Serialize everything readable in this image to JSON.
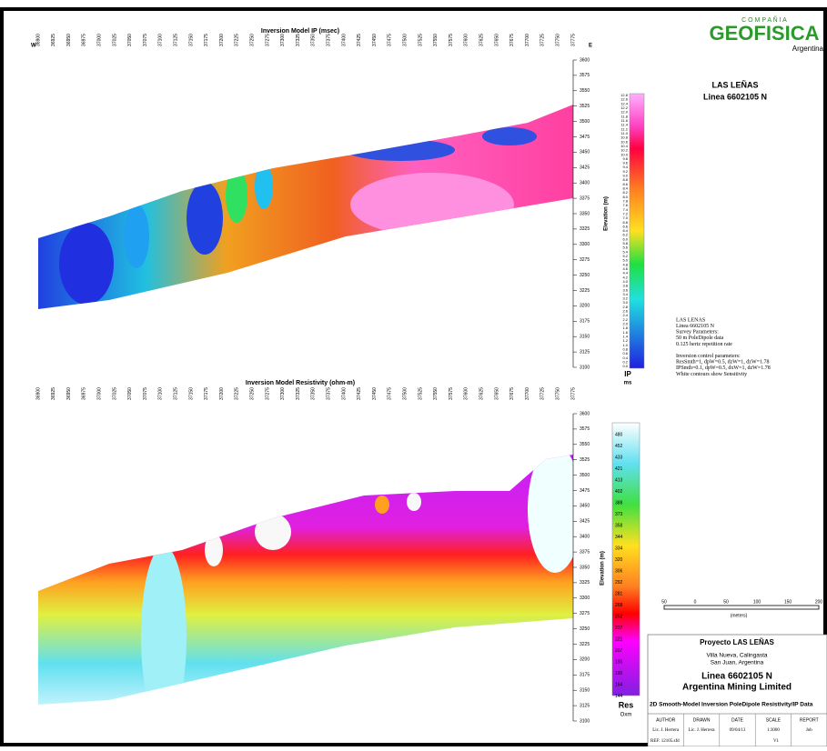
{
  "logo": {
    "top": "C O M P A Ñ I A",
    "brand": "GEOFISICA",
    "country": "Argentina"
  },
  "site": {
    "name": "LAS LEÑAS",
    "line": "Linea 6602105 N"
  },
  "stations": [
    36900,
    36925,
    36950,
    36975,
    37000,
    37025,
    37050,
    37075,
    37100,
    37125,
    37150,
    37175,
    37200,
    37225,
    37250,
    37275,
    37300,
    37325,
    37350,
    37375,
    37400,
    37425,
    37450,
    37475,
    37500,
    37525,
    37550,
    37575,
    37600,
    37625,
    37650,
    37675,
    37700,
    37725,
    37750,
    37775
  ],
  "elevations": [
    3600,
    3575,
    3550,
    3525,
    3500,
    3475,
    3450,
    3425,
    3400,
    3375,
    3350,
    3325,
    3300,
    3275,
    3250,
    3225,
    3200,
    3175,
    3150,
    3125,
    3100
  ],
  "ip_panel": {
    "title": "Inversion Model IP (msec)",
    "west": "W",
    "east": "E",
    "axis_label": "Elevation (m)",
    "scale_labels": [
      "12.8",
      "12.6",
      "12.4",
      "12.2",
      "12.0",
      "11.8",
      "11.6",
      "11.4",
      "11.2",
      "11.0",
      "10.8",
      "10.6",
      "10.4",
      "10.2",
      "10.0",
      "9.8",
      "9.6",
      "9.4",
      "9.2",
      "9.0",
      "8.8",
      "8.6",
      "8.4",
      "8.2",
      "8.0",
      "7.8",
      "7.6",
      "7.4",
      "7.2",
      "7.0",
      "6.8",
      "6.6",
      "6.4",
      "6.2",
      "6.0",
      "5.8",
      "5.6",
      "5.4",
      "5.2",
      "5.0",
      "4.8",
      "4.6",
      "4.4",
      "4.2",
      "4.0",
      "3.8",
      "3.6",
      "3.4",
      "3.2",
      "3.0",
      "2.8",
      "2.6",
      "2.4",
      "2.2",
      "2.0",
      "1.8",
      "1.6",
      "1.4",
      "1.2",
      "1.0",
      "0.8",
      "0.6",
      "0.4",
      "0.2",
      "0.0"
    ],
    "scale_title": "IP",
    "scale_unit": "ms"
  },
  "res_panel": {
    "title": "Inversion Model Resistivity (ohm-m)",
    "axis_label": "Elevation (m)",
    "scale_labels": [
      "480",
      "452",
      "433",
      "421",
      "413",
      "402",
      "388",
      "373",
      "358",
      "344",
      "334",
      "320",
      "306",
      "292",
      "281",
      "268",
      "252",
      "237",
      "221",
      "207",
      "193",
      "180",
      "164",
      "144"
    ],
    "scale_title": "Res",
    "scale_unit": "Oxm"
  },
  "notes": [
    "LAS LENAS",
    "Linea 6602105 N",
    "Survey Parameters:",
    "50 m PoleDipole data",
    "0.125 hertz repetition rate",
    "",
    "Inversion control parameters:",
    "ResSmth=1, dpW=0.5, dzW=1, dzW=1.78",
    "IPSmth=0.1, dpW=0.5, dxW=1, dzW=1.78",
    "White contours show Sensitivity"
  ],
  "scale_bar": {
    "ticks": [
      "50",
      "0",
      "50",
      "100",
      "150",
      "200"
    ],
    "unit": "(meters)"
  },
  "title_block": {
    "project": "Proyecto LAS LEÑAS",
    "place1": "Villa Nueva, Calingasta",
    "place2": "San Juan, Argentina",
    "line": "Linea 6602105 N",
    "company": "Argentina Mining Limited",
    "subtitle": "2D Smooth-Model Inversion  PoleDipole Resistivity/IP Data",
    "headers": [
      "AUTHOR",
      "DRAWN",
      "DATE",
      "SCALE",
      "REPORT"
    ],
    "values": [
      "Lic. J. Herrera",
      "Lic. J. Herrera",
      "09/04/13",
      "1:3000",
      "Job"
    ],
    "ref": "REF: 12105.sfd",
    "version": "V1"
  }
}
